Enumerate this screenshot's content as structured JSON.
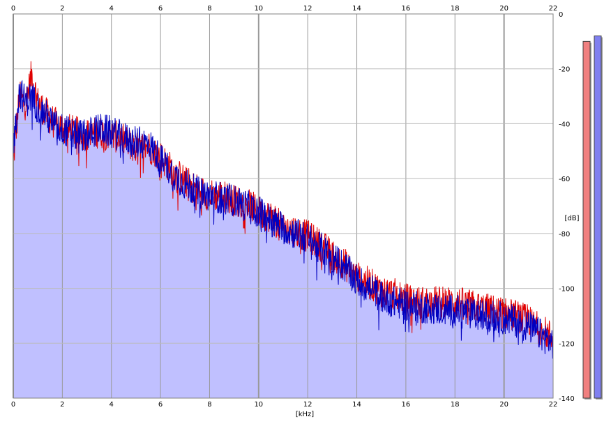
{
  "chart_data": {
    "type": "line",
    "title": "",
    "xlabel": "[kHz]",
    "ylabel": "[dB]",
    "xlim": [
      0,
      22
    ],
    "ylim": [
      -140,
      0
    ],
    "x_ticks": [
      0,
      2,
      4,
      6,
      8,
      10,
      12,
      14,
      16,
      18,
      20,
      22
    ],
    "y_ticks": [
      0,
      -20,
      -40,
      -60,
      -80,
      -100,
      -120,
      -140
    ],
    "grid": true,
    "legend": "none",
    "fill_color": "#c0c0ff",
    "series": [
      {
        "color": "#e00000",
        "x": [
          0,
          0.25,
          0.5,
          0.75,
          1,
          1.25,
          1.5,
          1.75,
          2,
          2.5,
          3,
          3.5,
          4,
          4.5,
          5,
          5.5,
          6,
          6.5,
          7,
          7.5,
          8,
          8.5,
          9,
          9.5,
          10,
          10.5,
          11,
          11.5,
          12,
          12.5,
          13,
          13.5,
          14,
          14.5,
          15,
          15.5,
          16,
          16.5,
          17,
          17.5,
          18,
          18.5,
          19,
          19.5,
          20,
          20.5,
          21,
          21.5,
          22
        ],
        "y": [
          -54,
          -30,
          -33,
          -22,
          -32,
          -35,
          -38,
          -40,
          -41,
          -43,
          -44,
          -43,
          -44,
          -46,
          -49,
          -48,
          -52,
          -57,
          -61,
          -64,
          -66,
          -66,
          -68,
          -69,
          -72,
          -74,
          -78,
          -79,
          -81,
          -84,
          -88,
          -91,
          -96,
          -98,
          -101,
          -102,
          -104,
          -105,
          -105,
          -105,
          -105,
          -106,
          -107,
          -108,
          -109,
          -110,
          -112,
          -115,
          -118
        ]
      },
      {
        "color": "#0000c0",
        "x": [
          0,
          0.25,
          0.5,
          0.75,
          1,
          1.25,
          1.5,
          1.75,
          2,
          2.5,
          3,
          3.5,
          4,
          4.5,
          5,
          5.5,
          6,
          6.5,
          7,
          7.5,
          8,
          8.5,
          9,
          9.5,
          10,
          10.5,
          11,
          11.5,
          12,
          12.5,
          13,
          13.5,
          14,
          14.5,
          15,
          15.5,
          16,
          16.5,
          17,
          17.5,
          18,
          18.5,
          19,
          19.5,
          20,
          20.5,
          21,
          21.5,
          22
        ],
        "y": [
          -48,
          -28,
          -32,
          -30,
          -34,
          -36,
          -39,
          -41,
          -42,
          -44,
          -44,
          -42,
          -43,
          -45,
          -47,
          -47,
          -53,
          -58,
          -62,
          -65,
          -66,
          -67,
          -68,
          -70,
          -72,
          -75,
          -78,
          -80,
          -82,
          -85,
          -89,
          -92,
          -97,
          -100,
          -103,
          -105,
          -106,
          -107,
          -107,
          -108,
          -108,
          -109,
          -110,
          -110,
          -111,
          -112,
          -114,
          -117,
          -120
        ]
      }
    ]
  },
  "meters": [
    {
      "color": "#f08080",
      "value_db": -10
    },
    {
      "color": "#8080f0",
      "value_db": -8
    }
  ]
}
